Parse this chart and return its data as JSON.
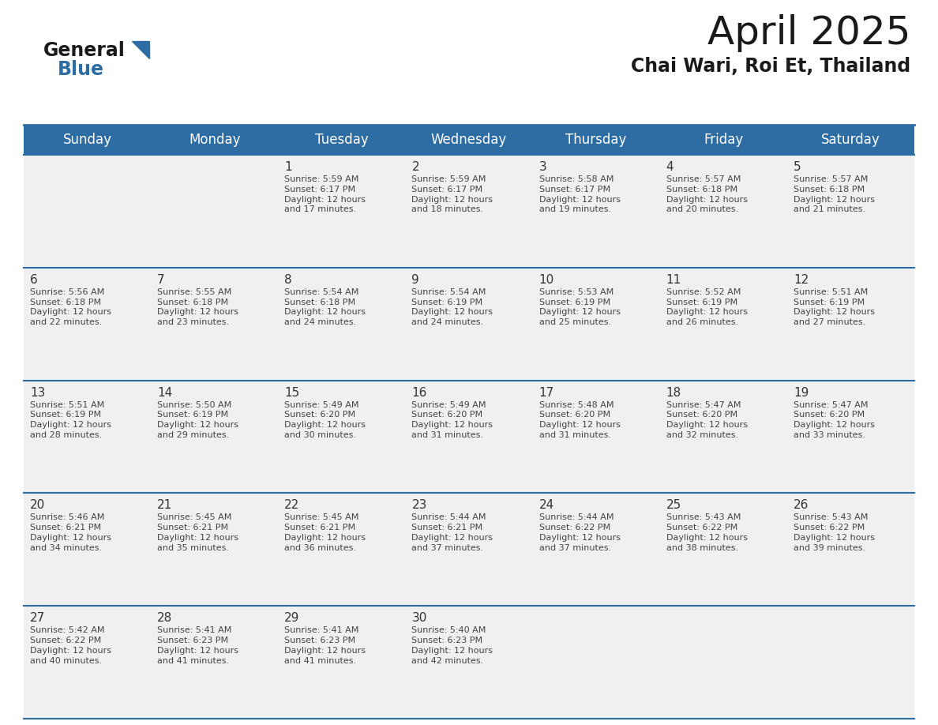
{
  "title": "April 2025",
  "subtitle": "Chai Wari, Roi Et, Thailand",
  "header_bg_color": "#2E6DA4",
  "header_text_color": "#FFFFFF",
  "cell_bg_color": "#F0F0F0",
  "text_color": "#333333",
  "border_color": "#2E6DA4",
  "days_of_week": [
    "Sunday",
    "Monday",
    "Tuesday",
    "Wednesday",
    "Thursday",
    "Friday",
    "Saturday"
  ],
  "weeks": [
    [
      {
        "day": "",
        "info": ""
      },
      {
        "day": "",
        "info": ""
      },
      {
        "day": "1",
        "info": "Sunrise: 5:59 AM\nSunset: 6:17 PM\nDaylight: 12 hours\nand 17 minutes."
      },
      {
        "day": "2",
        "info": "Sunrise: 5:59 AM\nSunset: 6:17 PM\nDaylight: 12 hours\nand 18 minutes."
      },
      {
        "day": "3",
        "info": "Sunrise: 5:58 AM\nSunset: 6:17 PM\nDaylight: 12 hours\nand 19 minutes."
      },
      {
        "day": "4",
        "info": "Sunrise: 5:57 AM\nSunset: 6:18 PM\nDaylight: 12 hours\nand 20 minutes."
      },
      {
        "day": "5",
        "info": "Sunrise: 5:57 AM\nSunset: 6:18 PM\nDaylight: 12 hours\nand 21 minutes."
      }
    ],
    [
      {
        "day": "6",
        "info": "Sunrise: 5:56 AM\nSunset: 6:18 PM\nDaylight: 12 hours\nand 22 minutes."
      },
      {
        "day": "7",
        "info": "Sunrise: 5:55 AM\nSunset: 6:18 PM\nDaylight: 12 hours\nand 23 minutes."
      },
      {
        "day": "8",
        "info": "Sunrise: 5:54 AM\nSunset: 6:18 PM\nDaylight: 12 hours\nand 24 minutes."
      },
      {
        "day": "9",
        "info": "Sunrise: 5:54 AM\nSunset: 6:19 PM\nDaylight: 12 hours\nand 24 minutes."
      },
      {
        "day": "10",
        "info": "Sunrise: 5:53 AM\nSunset: 6:19 PM\nDaylight: 12 hours\nand 25 minutes."
      },
      {
        "day": "11",
        "info": "Sunrise: 5:52 AM\nSunset: 6:19 PM\nDaylight: 12 hours\nand 26 minutes."
      },
      {
        "day": "12",
        "info": "Sunrise: 5:51 AM\nSunset: 6:19 PM\nDaylight: 12 hours\nand 27 minutes."
      }
    ],
    [
      {
        "day": "13",
        "info": "Sunrise: 5:51 AM\nSunset: 6:19 PM\nDaylight: 12 hours\nand 28 minutes."
      },
      {
        "day": "14",
        "info": "Sunrise: 5:50 AM\nSunset: 6:19 PM\nDaylight: 12 hours\nand 29 minutes."
      },
      {
        "day": "15",
        "info": "Sunrise: 5:49 AM\nSunset: 6:20 PM\nDaylight: 12 hours\nand 30 minutes."
      },
      {
        "day": "16",
        "info": "Sunrise: 5:49 AM\nSunset: 6:20 PM\nDaylight: 12 hours\nand 31 minutes."
      },
      {
        "day": "17",
        "info": "Sunrise: 5:48 AM\nSunset: 6:20 PM\nDaylight: 12 hours\nand 31 minutes."
      },
      {
        "day": "18",
        "info": "Sunrise: 5:47 AM\nSunset: 6:20 PM\nDaylight: 12 hours\nand 32 minutes."
      },
      {
        "day": "19",
        "info": "Sunrise: 5:47 AM\nSunset: 6:20 PM\nDaylight: 12 hours\nand 33 minutes."
      }
    ],
    [
      {
        "day": "20",
        "info": "Sunrise: 5:46 AM\nSunset: 6:21 PM\nDaylight: 12 hours\nand 34 minutes."
      },
      {
        "day": "21",
        "info": "Sunrise: 5:45 AM\nSunset: 6:21 PM\nDaylight: 12 hours\nand 35 minutes."
      },
      {
        "day": "22",
        "info": "Sunrise: 5:45 AM\nSunset: 6:21 PM\nDaylight: 12 hours\nand 36 minutes."
      },
      {
        "day": "23",
        "info": "Sunrise: 5:44 AM\nSunset: 6:21 PM\nDaylight: 12 hours\nand 37 minutes."
      },
      {
        "day": "24",
        "info": "Sunrise: 5:44 AM\nSunset: 6:22 PM\nDaylight: 12 hours\nand 37 minutes."
      },
      {
        "day": "25",
        "info": "Sunrise: 5:43 AM\nSunset: 6:22 PM\nDaylight: 12 hours\nand 38 minutes."
      },
      {
        "day": "26",
        "info": "Sunrise: 5:43 AM\nSunset: 6:22 PM\nDaylight: 12 hours\nand 39 minutes."
      }
    ],
    [
      {
        "day": "27",
        "info": "Sunrise: 5:42 AM\nSunset: 6:22 PM\nDaylight: 12 hours\nand 40 minutes."
      },
      {
        "day": "28",
        "info": "Sunrise: 5:41 AM\nSunset: 6:23 PM\nDaylight: 12 hours\nand 41 minutes."
      },
      {
        "day": "29",
        "info": "Sunrise: 5:41 AM\nSunset: 6:23 PM\nDaylight: 12 hours\nand 41 minutes."
      },
      {
        "day": "30",
        "info": "Sunrise: 5:40 AM\nSunset: 6:23 PM\nDaylight: 12 hours\nand 42 minutes."
      },
      {
        "day": "",
        "info": ""
      },
      {
        "day": "",
        "info": ""
      },
      {
        "day": "",
        "info": ""
      }
    ]
  ],
  "logo_text1": "General",
  "logo_text2": "Blue",
  "logo_color1": "#1a1a1a",
  "logo_color2": "#2E6DA4",
  "logo_triangle_color": "#2E6DA4",
  "title_fontsize": 36,
  "subtitle_fontsize": 17,
  "dow_fontsize": 12,
  "day_fontsize": 11,
  "info_fontsize": 8,
  "logo_fontsize": 17
}
